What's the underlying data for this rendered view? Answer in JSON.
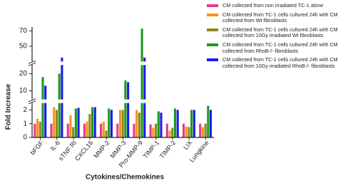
{
  "chart_data": {
    "type": "bar",
    "x_label": "Cytokines/Chemokines",
    "y_label": "Fold Increase",
    "categories": [
      "bFGF",
      "IL-6",
      "sTNF RI",
      "CXCL16",
      "MMP-2",
      "MMP-3",
      "Pro-MMP-9",
      "TIMP-1",
      "TIMP-2",
      "LIX",
      "Lungkine"
    ],
    "y_segments": [
      {
        "ylim": [
          0,
          2.5
        ],
        "yticks": [
          0,
          1,
          2
        ]
      },
      {
        "ylim": [
          5,
          25
        ],
        "yticks": [
          10,
          20
        ]
      },
      {
        "ylim": [
          30,
          75
        ],
        "yticks": [
          50,
          70
        ]
      }
    ],
    "series": [
      {
        "name": "CM collected from non irradiated TC-1 alone",
        "color": "#e8388a",
        "values": [
          1.0,
          1.0,
          1.0,
          1.0,
          1.0,
          1.0,
          1.0,
          0.95,
          1.0,
          1.0,
          1.0
        ]
      },
      {
        "name": "CM collected from TC-1 cells cultured 24h with CM collected from Wt fibroblasts",
        "color": "#f7931e",
        "values": [
          1.35,
          2.2,
          1.6,
          1.15,
          1.15,
          2.0,
          2.0,
          0.7,
          0.5,
          0.8,
          0.75
        ]
      },
      {
        "name": "CM collected from TC-1 cells cultured 24h with CM collected from 10Gy irradiated Wt fibroblasts",
        "color": "#8a8a1a",
        "values": [
          1.15,
          2.0,
          0.75,
          1.7,
          0.5,
          2.0,
          1.8,
          1.0,
          0.7,
          0.75,
          1.0
        ]
      },
      {
        "name": "CM collected from TC-1 cells cultured 24h with CM collected from RhoB-/- fibroblasts",
        "color": "#1a9a1a",
        "values": [
          18,
          20,
          2.1,
          2.2,
          2.1,
          16,
          73,
          1.9,
          2.1,
          2.0,
          2.3
        ]
      },
      {
        "name": "CM collected from TC-1 cells cultured 24h with CM collected from 10Gy irradiated RhoB-/- fibroblasts",
        "color": "#1a1aee",
        "values": [
          13,
          35,
          2.15,
          2.2,
          2.0,
          15,
          35,
          1.8,
          2.0,
          2.0,
          2.0
        ]
      }
    ]
  }
}
